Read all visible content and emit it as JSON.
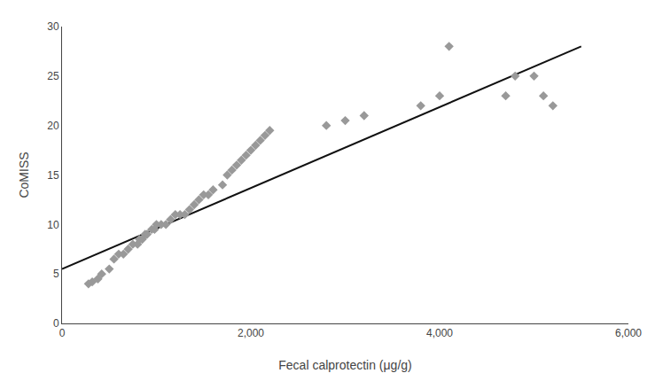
{
  "chart_data": {
    "type": "scatter",
    "xlabel": "Fecal calprotectin (μg/g)",
    "ylabel": "CoMISS",
    "series": [
      {
        "type": "scatter",
        "marker": "diamond",
        "color": "#999999",
        "x": [
          280,
          320,
          380,
          420,
          500,
          550,
          600,
          650,
          700,
          750,
          800,
          820,
          850,
          880,
          900,
          950,
          980,
          1000,
          1050,
          1100,
          1150,
          1200,
          1250,
          1300,
          1350,
          1400,
          1450,
          1500,
          1550,
          1600,
          1700,
          1750,
          1800,
          1850,
          1900,
          1950,
          2000,
          2050,
          2100,
          2150,
          2200,
          2800,
          3000,
          3200,
          3800,
          4000,
          4100,
          4700,
          4800,
          5000,
          5100,
          5200
        ],
        "values": [
          4,
          4.2,
          4.5,
          5,
          5.5,
          6.5,
          7,
          7,
          7.5,
          8,
          8,
          8.5,
          8.5,
          9,
          9,
          9.5,
          9.5,
          10,
          10,
          10,
          10.5,
          11,
          11,
          11,
          11.5,
          12,
          12.5,
          13,
          13,
          13.5,
          14,
          15,
          15.5,
          16,
          16.5,
          17,
          17.5,
          18,
          18.5,
          19,
          19.5,
          20,
          20.5,
          21,
          22,
          23,
          28,
          23,
          25,
          25,
          23,
          22
        ]
      },
      {
        "type": "line",
        "line_style": "solid",
        "color": "#111111",
        "x": [
          0,
          5500
        ],
        "values": [
          5.5,
          28.0
        ]
      }
    ],
    "xlim": [
      0,
      6000
    ],
    "ylim": [
      0,
      30
    ],
    "xticks": [
      0,
      {
        "value": 2000,
        "label": "2,000"
      },
      {
        "value": 4000,
        "label": "4,000"
      },
      {
        "value": 6000,
        "label": "6,000"
      }
    ],
    "yticks": [
      0,
      5,
      10,
      15,
      20,
      25,
      30
    ],
    "grid": false
  }
}
